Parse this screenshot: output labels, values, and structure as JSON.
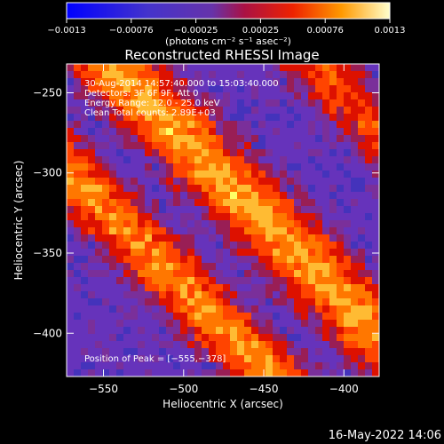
{
  "colorbar": {
    "tick_labels": [
      "−0.0013",
      "−0.00076",
      "−0.00025",
      "0.00025",
      "0.00076",
      "0.0013"
    ],
    "units_label": "(photons cm⁻² s⁻¹ asec⁻²)"
  },
  "image": {
    "title": "Reconstructed RHESSI Image",
    "info_lines": [
      "30-Aug-2014 14:57:40.000 to 15:03:40.000",
      "Detectors: 3F 6F 9F, Att 0",
      "Energy Range: 12.0 - 25.0 keV",
      "Clean     Total counts: 2.89E+03"
    ],
    "peak_label": "Position of Peak = [−555,−378]"
  },
  "axes": {
    "x_label": "Heliocentric X (arcsec)",
    "y_label": "Heliocentric Y (arcsec)",
    "x_ticks": [
      {
        "value": -550,
        "label": "−550"
      },
      {
        "value": -500,
        "label": "−500"
      },
      {
        "value": -450,
        "label": "−450"
      },
      {
        "value": -400,
        "label": "−400"
      }
    ],
    "y_ticks": [
      {
        "value": -250,
        "label": "−250"
      },
      {
        "value": -300,
        "label": "−300"
      },
      {
        "value": -350,
        "label": "−350"
      },
      {
        "value": -400,
        "label": "−400"
      }
    ]
  },
  "footer": {
    "timestamp": "16-May-2022 14:06"
  },
  "colors": {
    "background": "#000000",
    "negative_low": "#2244ff",
    "background_purple": "#6633bb",
    "band_red": "#dd1100",
    "band_orange": "#ff7700",
    "band_yellow": "#ffff66"
  }
}
